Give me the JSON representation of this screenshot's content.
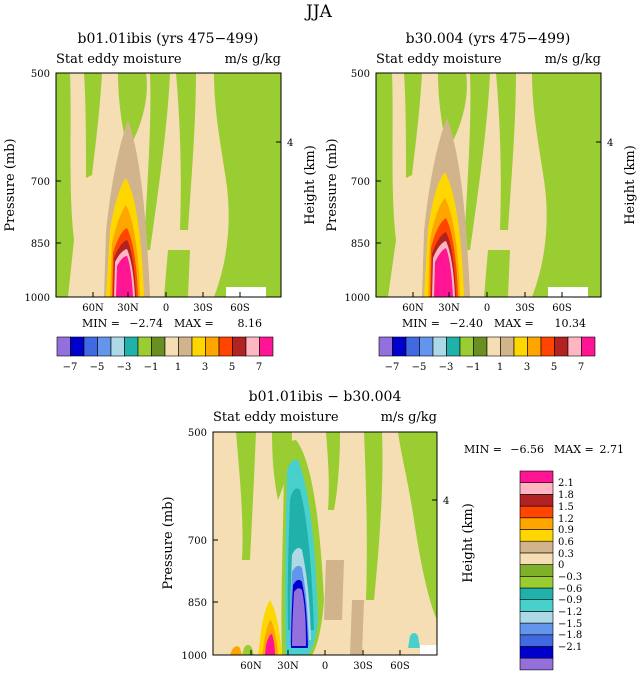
{
  "page_title": "JJA",
  "colors": {
    "palette_top": [
      "#9370db",
      "#0000cd",
      "#4169e1",
      "#6495ed",
      "#add8e6",
      "#20b2aa",
      "#9acd32",
      "#6b8e23",
      "#f5deb3",
      "#d2b48c",
      "#ffd700",
      "#ffa500",
      "#ff4500",
      "#b22222",
      "#ffb6c1",
      "#ff1493"
    ],
    "palette_diff": [
      "#9370db",
      "#0000cd",
      "#4169e1",
      "#6495ed",
      "#add8e6",
      "#48d1cc",
      "#20b2aa",
      "#9acd32",
      "#7fb02a",
      "#f5deb3",
      "#d2b48c",
      "#ffd700",
      "#ffa500",
      "#ff4500",
      "#b22222",
      "#ffb6c1",
      "#ff1493"
    ]
  },
  "chart_data": [
    {
      "type": "heatmap",
      "title": "b01.01ibis (yrs 475−499)",
      "left_subtitle": "Stat eddy moisture",
      "right_subtitle": "m/s g/kg",
      "ylabel": "Pressure (mb)",
      "ylabel_right": "Height (km)",
      "y_ticks": [
        "500",
        "700",
        "850",
        "1000"
      ],
      "y_right_ticks": [
        "4"
      ],
      "x_ticks": [
        "60N",
        "30N",
        "0",
        "30S",
        "60S"
      ],
      "min_label": "MIN =",
      "min_value": "−2.74",
      "max_label": "MAX =",
      "max_value": "8.16",
      "colorbar_labels": [
        "−7",
        "−5",
        "−3",
        "−1",
        "1",
        "3",
        "5",
        "7"
      ]
    },
    {
      "type": "heatmap",
      "title": "b30.004 (yrs 475−499)",
      "left_subtitle": "Stat eddy moisture",
      "right_subtitle": "m/s g/kg",
      "ylabel": "Pressure (mb)",
      "ylabel_right": "Height (km)",
      "y_ticks": [
        "500",
        "700",
        "850",
        "1000"
      ],
      "y_right_ticks": [
        "4"
      ],
      "x_ticks": [
        "60N",
        "30N",
        "0",
        "30S",
        "60S"
      ],
      "min_label": "MIN =",
      "min_value": "−2.40",
      "max_label": "MAX =",
      "max_value": "10.34",
      "colorbar_labels": [
        "−7",
        "−5",
        "−3",
        "−1",
        "1",
        "3",
        "5",
        "7"
      ]
    },
    {
      "type": "heatmap",
      "title": "b01.01ibis − b30.004",
      "left_subtitle": "Stat eddy moisture",
      "right_subtitle": "m/s g/kg",
      "ylabel": "Pressure (mb)",
      "ylabel_right": "Height (km)",
      "y_ticks": [
        "500",
        "700",
        "850",
        "1000"
      ],
      "y_right_ticks": [
        "4"
      ],
      "x_ticks": [
        "60N",
        "30N",
        "0",
        "30S",
        "60S"
      ],
      "min_label": "MIN =",
      "min_value": "−6.56",
      "max_label": "MAX =",
      "max_value": "2.71",
      "colorbar_labels": [
        "2.1",
        "1.8",
        "1.5",
        "1.2",
        "0.9",
        "0.6",
        "0.3",
        "0",
        "−0.3",
        "−0.6",
        "−0.9",
        "−1.2",
        "−1.5",
        "−1.8",
        "−2.1"
      ]
    }
  ]
}
